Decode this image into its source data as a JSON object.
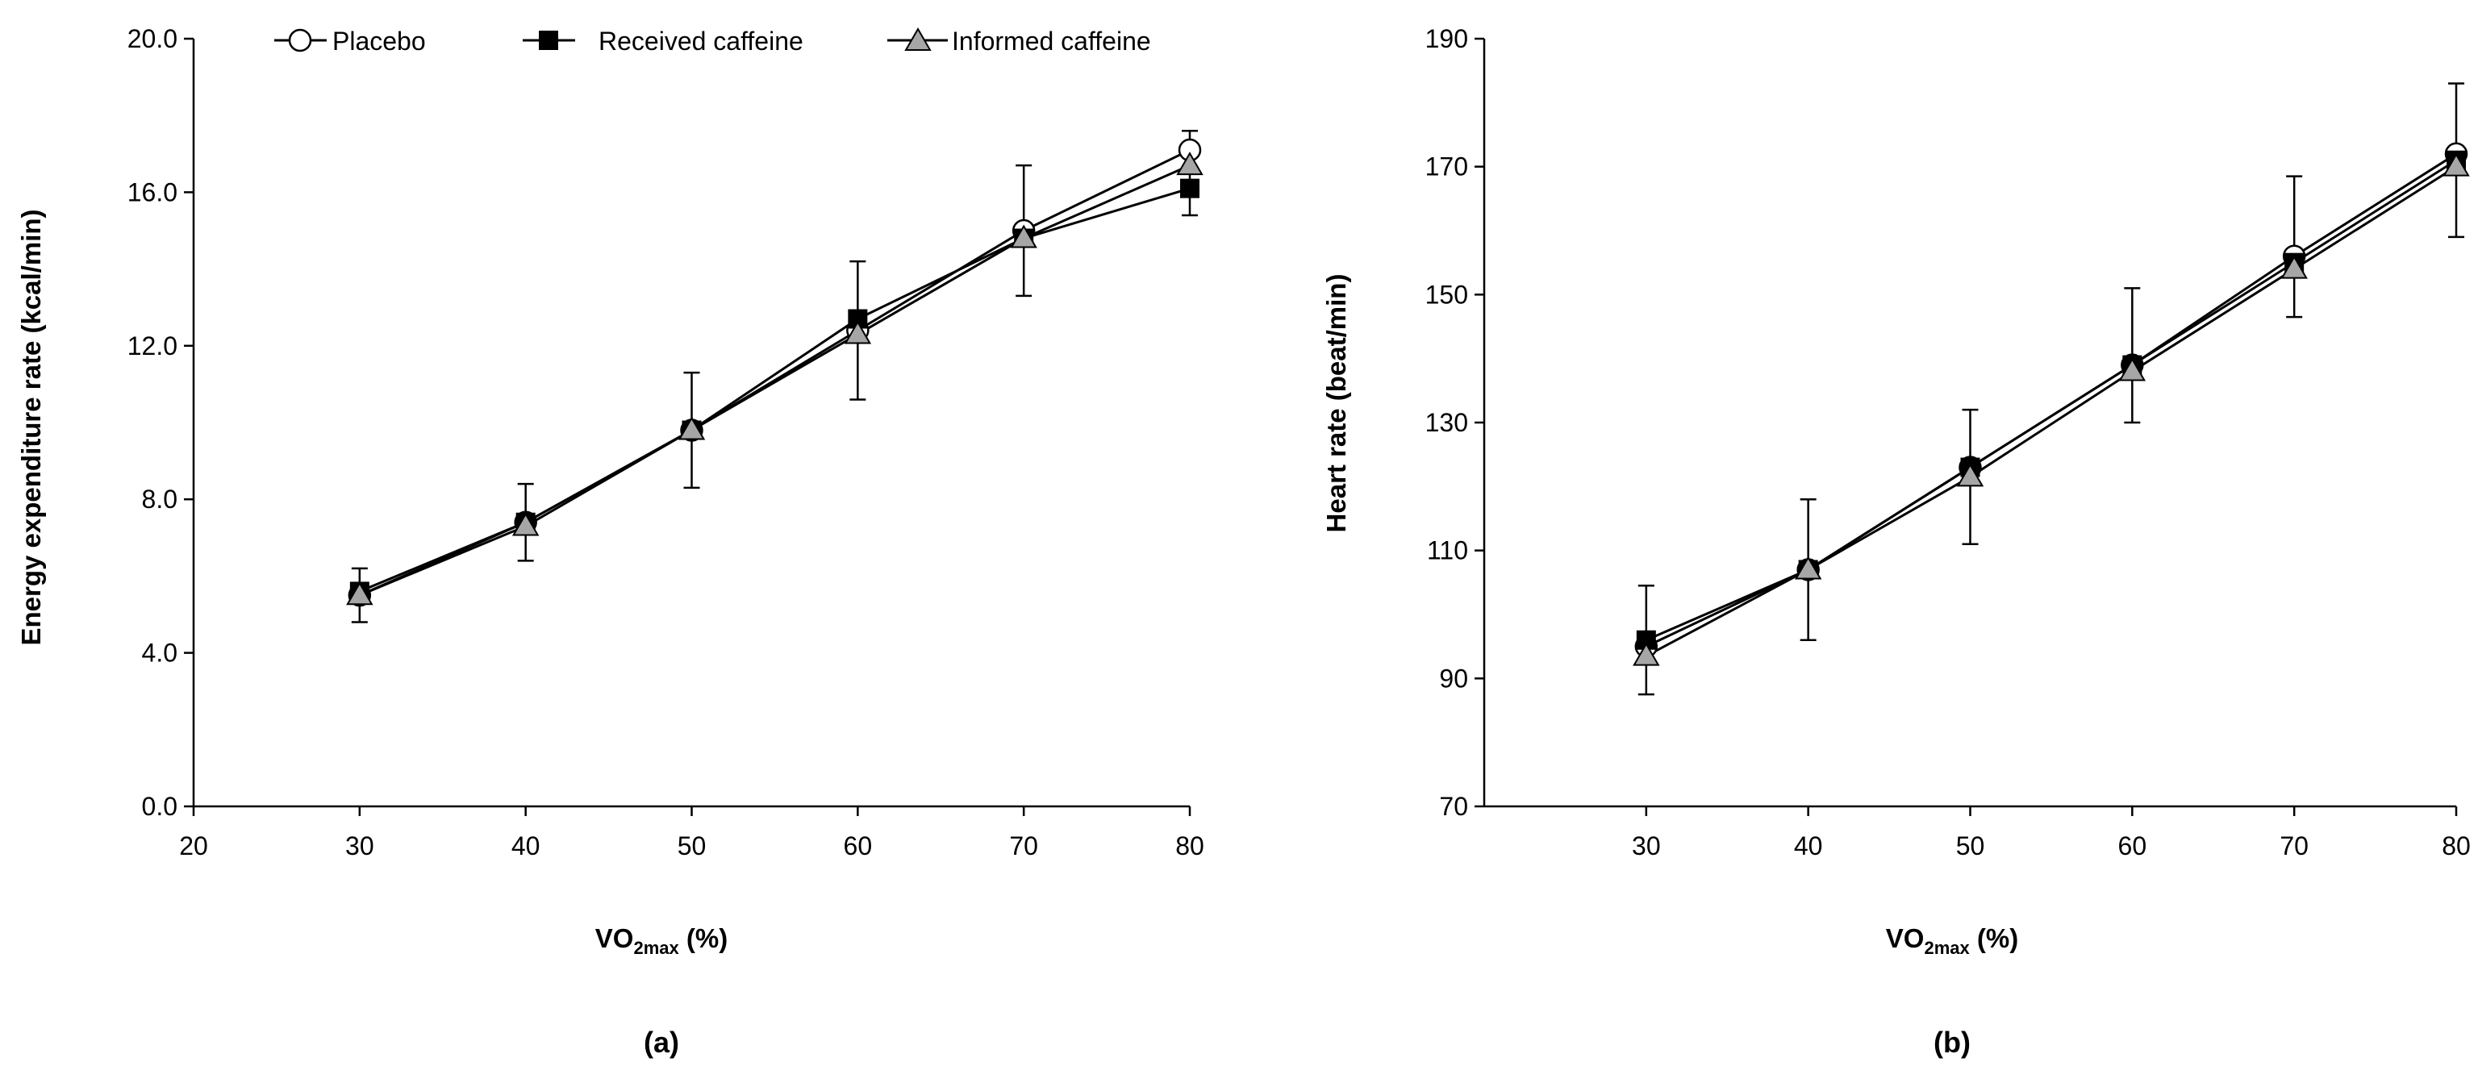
{
  "colors": {
    "placebo_fill": "#ffffff",
    "received_fill": "#000000",
    "informed_fill": "#a6a6a6",
    "line": "#000000"
  },
  "legend": [
    "Placebo",
    "Received caffeine",
    "Informed caffeine"
  ],
  "chart_data": [
    {
      "type": "line",
      "panel_label": "(a)",
      "title": "",
      "ylabel": "Energy expenditure rate  (kcal/min)",
      "xlabel_main": "VO",
      "xlabel_sub": "2max",
      "xlabel_tail": " (%)",
      "xlim": [
        20,
        80
      ],
      "ylim": [
        0,
        20
      ],
      "x_ticks": [
        "20",
        "30",
        "40",
        "50",
        "60",
        "70",
        "80"
      ],
      "y_ticks": [
        "0.0",
        "4.0",
        "8.0",
        "12.0",
        "16.0",
        "20.0"
      ],
      "x": [
        30,
        40,
        50,
        60,
        70,
        80
      ],
      "series": [
        {
          "name": "Placebo",
          "marker": "circle",
          "values": [
            5.5,
            7.4,
            9.8,
            12.4,
            15.0,
            17.1
          ]
        },
        {
          "name": "Received caffeine",
          "marker": "square",
          "values": [
            5.6,
            7.4,
            9.8,
            12.7,
            14.8,
            16.1
          ]
        },
        {
          "name": "Informed caffeine",
          "marker": "triangle",
          "values": [
            5.5,
            7.3,
            9.8,
            12.3,
            14.8,
            16.7
          ]
        }
      ],
      "error_bars": {
        "x": [
          30,
          40,
          50,
          60,
          70,
          80
        ],
        "center": [
          5.5,
          7.4,
          9.8,
          12.4,
          15.0,
          16.5
        ],
        "plus_minus": [
          0.7,
          1.0,
          1.5,
          1.8,
          1.7,
          1.1
        ]
      },
      "legend_position": "top"
    },
    {
      "type": "line",
      "panel_label": "(b)",
      "title": "",
      "ylabel": "Heart rate  (beat/min)",
      "xlabel_main": "VO",
      "xlabel_sub": "2max",
      "xlabel_tail": " (%)",
      "xlim": [
        20,
        80
      ],
      "ylim": [
        70,
        190
      ],
      "x_ticks": [
        "30",
        "40",
        "50",
        "60",
        "70",
        "80"
      ],
      "y_ticks": [
        "70",
        "90",
        "110",
        "130",
        "150",
        "170",
        "190"
      ],
      "x": [
        30,
        40,
        50,
        60,
        70,
        80
      ],
      "series": [
        {
          "name": "Placebo",
          "marker": "circle",
          "values": [
            95,
            107,
            123,
            139,
            156,
            172
          ]
        },
        {
          "name": "Received caffeine",
          "marker": "square",
          "values": [
            96,
            107,
            123,
            139,
            155,
            171
          ]
        },
        {
          "name": "Informed caffeine",
          "marker": "triangle",
          "values": [
            93.5,
            107,
            121.5,
            138,
            154,
            170
          ]
        }
      ],
      "error_bars": {
        "x": [
          30,
          40,
          50,
          60,
          70,
          80
        ],
        "center": [
          96,
          107,
          121.5,
          140.5,
          157.5,
          171
        ],
        "plus_minus": [
          8.5,
          11,
          10.5,
          10.5,
          11,
          12
        ]
      },
      "legend_position": "none"
    }
  ]
}
